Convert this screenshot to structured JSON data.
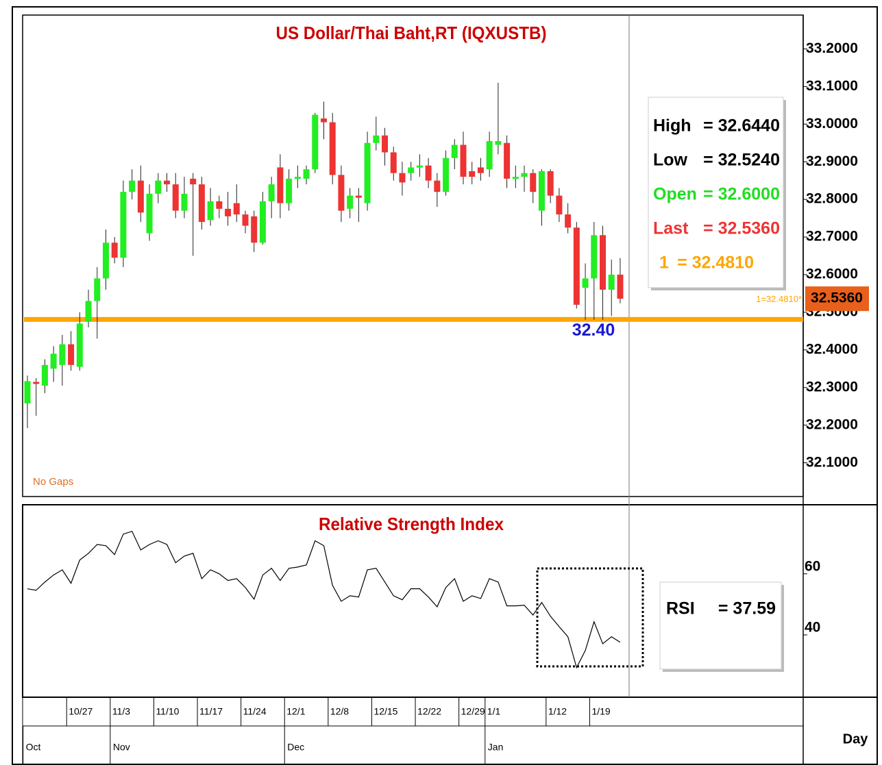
{
  "chart_data": [
    {
      "type": "candlestick",
      "title": "US Dollar/Thai Baht,RT (IQXUSTB)",
      "up_color": "#22ee22",
      "down_color": "#ee3333",
      "open": [
        32.258,
        32.315,
        32.305,
        32.35,
        32.36,
        32.415,
        32.355,
        32.475,
        32.53,
        32.59,
        32.685,
        32.645,
        32.82,
        32.85,
        32.71,
        32.815,
        32.85,
        32.84,
        32.77,
        32.855,
        32.84,
        32.745,
        32.795,
        32.775,
        32.79,
        32.76,
        32.755,
        32.685,
        32.795,
        32.885,
        32.79,
        32.855,
        32.855,
        32.88,
        33.015,
        33.005,
        32.865,
        32.775,
        32.81,
        32.79,
        32.95,
        32.97,
        32.925,
        32.87,
        32.87,
        32.885,
        32.89,
        32.85,
        32.82,
        32.91,
        32.945,
        32.875,
        32.885,
        32.88,
        32.945,
        32.95,
        32.855,
        32.86,
        32.87,
        32.77,
        32.875,
        32.81,
        32.76,
        32.725,
        32.565,
        32.59,
        32.705,
        32.56,
        32.6
      ],
      "high": [
        32.332,
        32.325,
        32.375,
        32.41,
        32.44,
        32.45,
        32.5,
        32.56,
        32.62,
        32.72,
        32.7,
        32.85,
        32.88,
        32.89,
        32.84,
        32.87,
        32.87,
        32.87,
        32.86,
        32.87,
        32.86,
        32.83,
        32.81,
        32.82,
        32.84,
        32.77,
        32.77,
        32.82,
        32.86,
        32.92,
        32.88,
        32.89,
        32.89,
        33.03,
        33.06,
        33.03,
        32.89,
        32.83,
        32.83,
        32.98,
        33.02,
        32.99,
        32.94,
        32.9,
        32.9,
        32.92,
        32.91,
        32.87,
        32.93,
        32.96,
        32.98,
        32.9,
        32.91,
        32.98,
        33.11,
        32.97,
        32.89,
        32.89,
        32.88,
        32.88,
        32.88,
        32.83,
        32.79,
        32.74,
        32.63,
        32.74,
        32.73,
        32.64,
        32.644
      ],
      "low": [
        32.192,
        32.225,
        32.285,
        32.315,
        32.305,
        32.345,
        32.345,
        32.46,
        32.43,
        32.56,
        32.63,
        32.62,
        32.8,
        32.74,
        32.69,
        32.79,
        32.82,
        32.75,
        32.75,
        32.65,
        32.72,
        32.73,
        32.75,
        32.73,
        32.74,
        32.71,
        32.66,
        32.68,
        32.75,
        32.75,
        32.77,
        32.83,
        32.84,
        32.87,
        32.96,
        32.84,
        32.74,
        32.75,
        32.74,
        32.77,
        32.93,
        32.89,
        32.85,
        32.81,
        32.85,
        32.86,
        32.83,
        32.78,
        32.81,
        32.88,
        32.84,
        32.84,
        32.85,
        32.86,
        32.92,
        32.83,
        32.83,
        32.82,
        32.79,
        32.73,
        32.79,
        32.74,
        32.71,
        32.51,
        32.48,
        32.48,
        32.48,
        32.49,
        32.524
      ],
      "close": [
        32.317,
        32.31,
        32.36,
        32.39,
        32.415,
        32.36,
        32.47,
        32.53,
        32.59,
        32.685,
        32.645,
        32.82,
        32.85,
        32.765,
        32.815,
        32.85,
        32.84,
        32.77,
        32.815,
        32.84,
        32.74,
        32.795,
        32.775,
        32.755,
        32.76,
        32.73,
        32.685,
        32.795,
        32.84,
        32.79,
        32.855,
        32.86,
        32.88,
        33.025,
        33.005,
        32.865,
        32.77,
        32.81,
        32.805,
        32.95,
        32.97,
        32.925,
        32.87,
        32.845,
        32.885,
        32.89,
        32.85,
        32.82,
        32.91,
        32.945,
        32.86,
        32.86,
        32.87,
        32.955,
        32.955,
        32.855,
        32.86,
        32.87,
        32.82,
        32.875,
        32.81,
        32.76,
        32.725,
        32.52,
        32.59,
        32.705,
        32.56,
        32.6,
        32.536
      ],
      "ylim": [
        32.0103,
        33.2899
      ],
      "yticks": [
        {
          "value": 32.1,
          "label": "32.1000"
        },
        {
          "value": 32.2,
          "label": "32.2000"
        },
        {
          "value": 32.3,
          "label": "32.3000"
        },
        {
          "value": 32.4,
          "label": "32.4000"
        },
        {
          "value": 32.5,
          "label": "32.5000"
        },
        {
          "value": 32.6,
          "label": "32.6000"
        },
        {
          "value": 32.7,
          "label": "32.7000"
        },
        {
          "value": 32.8,
          "label": "32.8000"
        },
        {
          "value": 32.9,
          "label": "32.9000"
        },
        {
          "value": 33.0,
          "label": "33.0000"
        },
        {
          "value": 33.1,
          "label": "33.1000"
        },
        {
          "value": 33.2,
          "label": "33.2000"
        }
      ],
      "level": {
        "value": 32.481,
        "label": "1=32.4810*",
        "color": "#ffa500"
      },
      "last_label": "32.5360",
      "last_color": "#e8601c",
      "annotation": "32.40",
      "annotation_color": "#1a1acc",
      "note": "No Gaps",
      "note_color": "#e07020",
      "info": [
        {
          "name": "High",
          "text": "= 32.6440",
          "color": "#000000"
        },
        {
          "name": "Low",
          "text": "= 32.5240",
          "color": "#000000"
        },
        {
          "name": "Open",
          "text": "= 32.6000",
          "color": "#22dd22"
        },
        {
          "name": "Last",
          "text": "= 32.5360",
          "color": "#ee3333"
        },
        {
          "name": "1",
          "text": "= 32.4810",
          "color": "#ffa500"
        }
      ]
    },
    {
      "type": "line",
      "title": "Relative Strength Index",
      "color": "#000000",
      "values": [
        55.1,
        54.6,
        57.3,
        59.6,
        61.3,
        56.9,
        64.5,
        66.7,
        69.6,
        69.2,
        66.3,
        73.0,
        73.9,
        67.8,
        69.6,
        70.8,
        69.6,
        63.6,
        65.8,
        66.7,
        58.4,
        61.3,
        60.0,
        57.8,
        58.4,
        55.5,
        51.7,
        59.6,
        61.8,
        57.8,
        61.8,
        62.2,
        62.9,
        70.8,
        69.2,
        56.2,
        51.0,
        52.8,
        52.4,
        61.3,
        61.8,
        57.3,
        52.8,
        51.5,
        55.1,
        55.1,
        52.4,
        49.2,
        55.5,
        58.4,
        51.0,
        52.8,
        51.9,
        58.4,
        57.3,
        49.5,
        49.5,
        49.7,
        46.5,
        50.6,
        46.1,
        42.7,
        39.4,
        29.3,
        34.9,
        44.3,
        37.1,
        39.4,
        37.59
      ],
      "ylim": [
        19.6,
        82.6
      ],
      "yticks": [
        40,
        60
      ],
      "info": [
        {
          "name": "RSI",
          "text": "= 37.59"
        }
      ],
      "xticks": [
        {
          "value": 5,
          "label": "10/27"
        },
        {
          "value": 10,
          "label": "11/3"
        },
        {
          "value": 15,
          "label": "11/10"
        },
        {
          "value": 20,
          "label": "11/17"
        },
        {
          "value": 25,
          "label": "11/24"
        },
        {
          "value": 30,
          "label": "12/1"
        },
        {
          "value": 35,
          "label": "12/8"
        },
        {
          "value": 40,
          "label": "12/15"
        },
        {
          "value": 45,
          "label": "12/22"
        },
        {
          "value": 50,
          "label": "12/29"
        },
        {
          "value": 53,
          "label": "1/1"
        },
        {
          "value": 60,
          "label": "1/12"
        },
        {
          "value": 65,
          "label": "1/19"
        }
      ],
      "month_ticks": [
        {
          "value": 0,
          "label": "Oct"
        },
        {
          "value": 10,
          "label": "Nov"
        },
        {
          "value": 30,
          "label": "Dec"
        },
        {
          "value": 53,
          "label": "Jan"
        }
      ],
      "x_label": "Day"
    }
  ]
}
